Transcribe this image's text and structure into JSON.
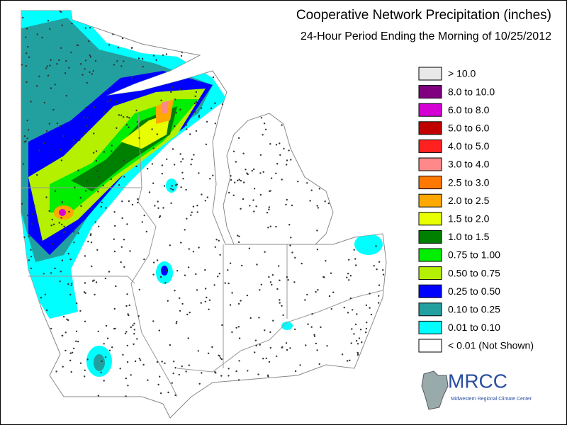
{
  "header": {
    "title": "Cooperative Network Precipitation (inches)",
    "subtitle": "24-Hour Period Ending the Morning of 10/25/2012"
  },
  "legend": [
    {
      "label": "> 10.0",
      "color": "#e8e8e8"
    },
    {
      "label": "8.0 to 10.0",
      "color": "#800080"
    },
    {
      "label": "6.0 to 8.0",
      "color": "#d400d4"
    },
    {
      "label": "5.0 to 6.0",
      "color": "#c00000"
    },
    {
      "label": "4.0 to 5.0",
      "color": "#ff2020"
    },
    {
      "label": "3.0 to 4.0",
      "color": "#ff8888"
    },
    {
      "label": "2.5 to 3.0",
      "color": "#ff7800"
    },
    {
      "label": "2.0 to 2.5",
      "color": "#ffa800"
    },
    {
      "label": "1.5 to 2.0",
      "color": "#e8ff00"
    },
    {
      "label": "1.0 to 1.5",
      "color": "#008000"
    },
    {
      "label": "0.75 to 1.00",
      "color": "#00ee00"
    },
    {
      "label": "0.50 to 0.75",
      "color": "#b4f000"
    },
    {
      "label": "0.25 to 0.50",
      "color": "#0000ff"
    },
    {
      "label": "0.10 to 0.25",
      "color": "#22a0a0"
    },
    {
      "label": "0.01 to 0.10",
      "color": "#00ffff"
    },
    {
      "label": "< 0.01 (Not Shown)",
      "color": "#ffffff"
    }
  ],
  "logo": {
    "name": "MRCC",
    "full_name": "Midwestern Regional Climate Center"
  }
}
